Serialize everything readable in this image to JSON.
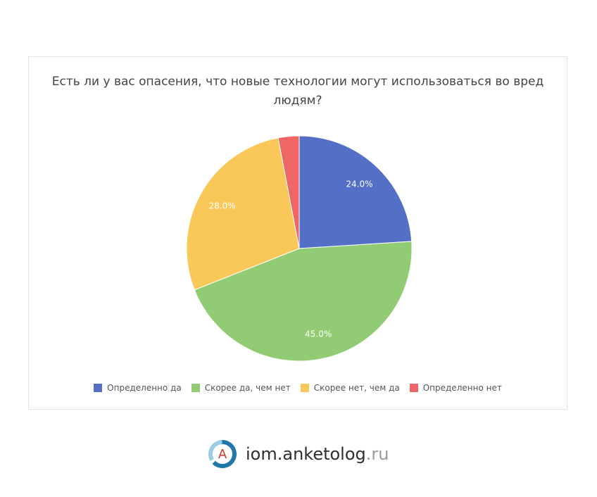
{
  "chart_data": {
    "type": "pie",
    "title": "Есть ли у вас опасения, что новые технологии могут использоваться во вред людям?",
    "categories": [
      "Определенно да",
      "Скорее да, чем нет",
      "Скорее нет, чем да",
      "Определенно нет"
    ],
    "values": [
      24.0,
      45.0,
      28.0,
      3.0
    ],
    "value_labels": [
      "24.0%",
      "45.0%",
      "28.0%",
      ""
    ],
    "colors": [
      "#5470c6",
      "#91cc75",
      "#fac858",
      "#ee6666"
    ],
    "legend_position": "bottom",
    "start_angle": "top, clockwise"
  },
  "footer": {
    "logo_letter": "A",
    "brand_main": "iom.anketolog",
    "brand_tld": ".ru"
  }
}
